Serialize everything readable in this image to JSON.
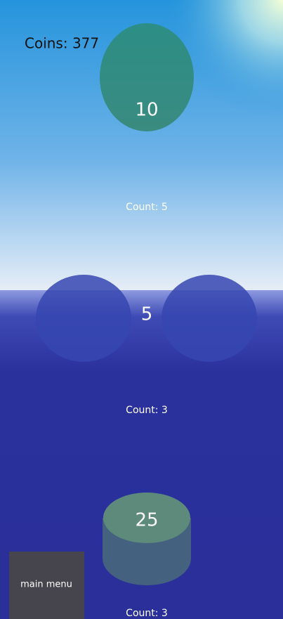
{
  "hud": {
    "coins": "Coins: 377",
    "main_menu": "main menu"
  },
  "targets": [
    {
      "value": "10",
      "count": "Count: 5"
    },
    {
      "value": "5",
      "count": "Count: 3"
    },
    {
      "value": "25",
      "count": "Count: 3"
    }
  ]
}
